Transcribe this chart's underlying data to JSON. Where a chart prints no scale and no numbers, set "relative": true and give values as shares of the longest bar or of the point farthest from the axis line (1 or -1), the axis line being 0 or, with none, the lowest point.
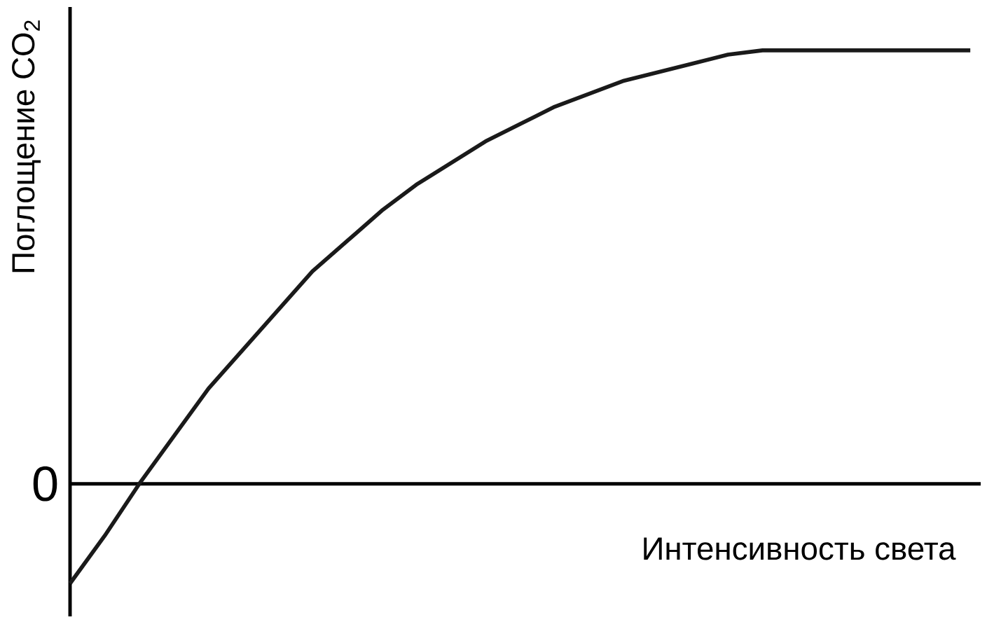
{
  "chart_data": {
    "type": "line",
    "relative": true,
    "xlabel": "Интенсивность света",
    "ylabel": "Поглощение CO$_{2}$",
    "annotations": [
      "0"
    ],
    "categories": [
      null,
      null,
      null,
      null,
      null,
      null,
      null,
      null,
      null,
      null,
      null,
      null,
      null,
      null,
      null,
      null,
      null,
      null,
      null,
      null,
      null,
      null,
      null,
      null,
      null,
      null,
      null
    ],
    "series": [
      {
        "color": "#1a1a1a",
        "values": [
          -0.23,
          -0.12,
          0,
          0.11,
          0.22,
          0.31,
          0.4,
          0.49,
          0.56,
          0.63,
          0.69,
          0.74,
          0.79,
          0.83,
          0.87,
          0.9,
          0.93,
          0.95,
          0.97,
          0.99,
          1,
          1,
          1,
          1,
          1,
          1,
          1
        ]
      }
    ],
    "marker": "none",
    "line_style": "solid"
  }
}
